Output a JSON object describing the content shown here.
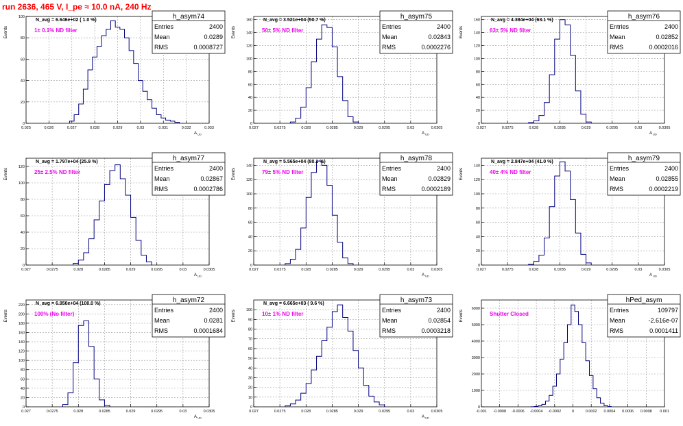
{
  "page_title": "run 2636,   465 V, I_pe ≈ 10.0 nA, 240 Hz",
  "y_axis_label": "Events",
  "stats_labels": {
    "entries": "Entries",
    "mean": "Mean",
    "rms": "RMS"
  },
  "colors": {
    "histogram": "#00007f",
    "annotation": "#ee00ee",
    "title": "#ff0000",
    "grid": "#9a9a9a"
  },
  "chart_data": [
    {
      "type": "histogram",
      "name": "h_asym74",
      "navg": "N_avg = 6.646e+02 ( 1.0 %)",
      "annotation": "1± 0.1% ND filter",
      "stats": {
        "entries": "2400",
        "mean": "0.0289",
        "rms": "0.0008727"
      },
      "xlabel": "A_UD",
      "xlim": [
        0.025,
        0.033
      ],
      "xticks": [
        "0.025",
        "0.026",
        "0.027",
        "0.028",
        "0.029",
        "0.03",
        "0.031",
        "0.032",
        "0.033"
      ],
      "ylim": [
        0,
        100
      ],
      "yticks": [
        "0",
        "20",
        "40",
        "60",
        "80",
        "100"
      ],
      "x": [
        0.027,
        0.0272,
        0.0274,
        0.0276,
        0.0278,
        0.028,
        0.0282,
        0.0284,
        0.0286,
        0.0288,
        0.029,
        0.0292,
        0.0294,
        0.0296,
        0.0298,
        0.03,
        0.0302,
        0.0304,
        0.0306,
        0.0308,
        0.031,
        0.0312,
        0.0314,
        0.0316
      ],
      "y": [
        2,
        8,
        18,
        32,
        50,
        62,
        72,
        82,
        88,
        96,
        90,
        88,
        80,
        68,
        56,
        40,
        30,
        22,
        14,
        8,
        5,
        3,
        2,
        1
      ]
    },
    {
      "type": "histogram",
      "name": "h_asym75",
      "navg": "N_avg = 3.521e+04 (50.7 %)",
      "annotation": "50± 5% ND filter",
      "stats": {
        "entries": "2400",
        "mean": "0.02843",
        "rms": "0.0002276"
      },
      "xlabel": "A_UD",
      "xlim": [
        0.027,
        0.0305
      ],
      "xticks": [
        "0.027",
        "0.0275",
        "0.028",
        "0.0285",
        "0.029",
        "0.0295",
        "0.03",
        "0.0305"
      ],
      "ylim": [
        0,
        165
      ],
      "yticks": [
        "0",
        "20",
        "40",
        "60",
        "80",
        "100",
        "120",
        "140",
        "160"
      ],
      "x": [
        0.02775,
        0.02785,
        0.02795,
        0.02805,
        0.02815,
        0.02825,
        0.02835,
        0.02845,
        0.02855,
        0.02865,
        0.02875,
        0.02885,
        0.02895
      ],
      "y": [
        2,
        8,
        25,
        55,
        95,
        130,
        152,
        148,
        118,
        72,
        35,
        10,
        2
      ]
    },
    {
      "type": "histogram",
      "name": "h_asym76",
      "navg": "N_avg = 4.384e+04 (63.1 %)",
      "annotation": "63± 5% ND filter",
      "stats": {
        "entries": "2400",
        "mean": "0.02852",
        "rms": "0.0002016"
      },
      "xlabel": "A_UD",
      "xlim": [
        0.027,
        0.0305
      ],
      "xticks": [
        "0.027",
        "0.0275",
        "0.028",
        "0.0285",
        "0.029",
        "0.0295",
        "0.03",
        "0.0305"
      ],
      "ylim": [
        0,
        165
      ],
      "yticks": [
        "0",
        "20",
        "40",
        "60",
        "80",
        "100",
        "120",
        "140",
        "160"
      ],
      "x": [
        0.02795,
        0.02805,
        0.02815,
        0.02825,
        0.02835,
        0.02845,
        0.02855,
        0.02865,
        0.02875,
        0.02885,
        0.02895,
        0.02905
      ],
      "y": [
        1,
        4,
        12,
        32,
        75,
        130,
        160,
        152,
        105,
        50,
        14,
        2
      ]
    },
    {
      "type": "histogram",
      "name": "h_asym77",
      "navg": "N_avg = 1.797e+04 (25.9 %)",
      "annotation": "25± 2.5% ND filter",
      "stats": {
        "entries": "2400",
        "mean": "0.02867",
        "rms": "0.0002786"
      },
      "xlabel": "A_UD",
      "xlim": [
        0.027,
        0.0305
      ],
      "xticks": [
        "0.027",
        "0.0275",
        "0.028",
        "0.0285",
        "0.029",
        "0.0295",
        "0.03",
        "0.0305"
      ],
      "ylim": [
        0,
        130
      ],
      "yticks": [
        "0",
        "20",
        "40",
        "60",
        "80",
        "100",
        "120"
      ],
      "x": [
        0.02795,
        0.02805,
        0.02815,
        0.02825,
        0.02835,
        0.02845,
        0.02855,
        0.02865,
        0.02875,
        0.02885,
        0.02895,
        0.02905,
        0.02915,
        0.02925,
        0.02935
      ],
      "y": [
        2,
        6,
        15,
        32,
        55,
        78,
        98,
        115,
        122,
        105,
        85,
        58,
        30,
        12,
        4
      ]
    },
    {
      "type": "histogram",
      "name": "h_asym78",
      "navg": "N_avg = 5.565e+04 (80.1 %)",
      "annotation": "79± 5% ND filter",
      "stats": {
        "entries": "2400",
        "mean": "0.02829",
        "rms": "0.0002189"
      },
      "xlabel": "A_UD",
      "xlim": [
        0.027,
        0.0305
      ],
      "xticks": [
        "0.027",
        "0.0275",
        "0.028",
        "0.0285",
        "0.029",
        "0.0295",
        "0.03",
        "0.0305"
      ],
      "ylim": [
        0,
        150
      ],
      "yticks": [
        "0",
        "20",
        "40",
        "60",
        "80",
        "100",
        "120",
        "140"
      ],
      "x": [
        0.02765,
        0.02775,
        0.02785,
        0.02795,
        0.02805,
        0.02815,
        0.02825,
        0.02835,
        0.02845,
        0.02855,
        0.02865,
        0.02875,
        0.02885
      ],
      "y": [
        2,
        8,
        22,
        52,
        95,
        130,
        146,
        140,
        112,
        70,
        32,
        10,
        2
      ]
    },
    {
      "type": "histogram",
      "name": "h_asym79",
      "navg": "N_avg = 2.847e+04 (41.0 %)",
      "annotation": "40± 4% ND filter",
      "stats": {
        "entries": "2400",
        "mean": "0.02855",
        "rms": "0.0002219"
      },
      "xlabel": "A_UD",
      "xlim": [
        0.027,
        0.0305
      ],
      "xticks": [
        "0.027",
        "0.0275",
        "0.028",
        "0.0285",
        "0.029",
        "0.0295",
        "0.03",
        "0.0305"
      ],
      "ylim": [
        0,
        150
      ],
      "yticks": [
        "0",
        "20",
        "40",
        "60",
        "80",
        "100",
        "120",
        "140"
      ],
      "x": [
        0.02795,
        0.02805,
        0.02815,
        0.02825,
        0.02835,
        0.02845,
        0.02855,
        0.02865,
        0.02875,
        0.02885,
        0.02895,
        0.02905
      ],
      "y": [
        1,
        5,
        14,
        38,
        82,
        125,
        145,
        132,
        92,
        45,
        15,
        3
      ]
    },
    {
      "type": "histogram",
      "name": "h_asym72",
      "navg": "N_avg = 6.950e+04 (100.0 %)",
      "annotation": "100% (No filter)",
      "stats": {
        "entries": "2400",
        "mean": "0.0281",
        "rms": "0.0001684"
      },
      "xlabel": "A_UD",
      "xlim": [
        0.027,
        0.0305
      ],
      "xticks": [
        "0.027",
        "0.0275",
        "0.028",
        "0.0285",
        "0.029",
        "0.0295",
        "0.03",
        "0.0305"
      ],
      "ylim": [
        0,
        230
      ],
      "yticks": [
        "0",
        "20",
        "40",
        "60",
        "80",
        "100",
        "120",
        "140",
        "160",
        "180",
        "200",
        "220"
      ],
      "x": [
        0.02775,
        0.02785,
        0.02795,
        0.02805,
        0.02815,
        0.02825,
        0.02835,
        0.02845,
        0.02855
      ],
      "y": [
        5,
        30,
        95,
        175,
        185,
        130,
        60,
        15,
        3
      ]
    },
    {
      "type": "histogram",
      "name": "h_asym73",
      "navg": "N_avg = 6.665e+03 ( 9.6 %)",
      "annotation": "10± 1% ND filter",
      "stats": {
        "entries": "2400",
        "mean": "0.02854",
        "rms": "0.0003218"
      },
      "xlabel": "A_UD",
      "xlim": [
        0.027,
        0.0305
      ],
      "xticks": [
        "0.027",
        "0.0275",
        "0.028",
        "0.0285",
        "0.029",
        "0.0295",
        "0.03",
        "0.0305"
      ],
      "ylim": [
        0,
        110
      ],
      "yticks": [
        "0",
        "10",
        "20",
        "30",
        "40",
        "50",
        "60",
        "70",
        "80",
        "90",
        "100"
      ],
      "x": [
        0.02765,
        0.02775,
        0.02785,
        0.02795,
        0.02805,
        0.02815,
        0.02825,
        0.02835,
        0.02845,
        0.02855,
        0.02865,
        0.02875,
        0.02885,
        0.02895,
        0.02905,
        0.02915,
        0.02925,
        0.02935,
        0.02945
      ],
      "y": [
        1,
        3,
        7,
        14,
        24,
        38,
        52,
        68,
        82,
        98,
        105,
        92,
        78,
        58,
        40,
        22,
        11,
        5,
        2
      ]
    },
    {
      "type": "histogram",
      "name": "hPed_asym",
      "navg": "",
      "annotation": "Shutter Closed",
      "stats": {
        "entries": "109797",
        "mean": "-2.616e-07",
        "rms": "0.0001411"
      },
      "xlabel": "",
      "xlim": [
        -0.001,
        0.001
      ],
      "xticks": [
        "-0.001",
        "-0.0008",
        "-0.0006",
        "-0.0004",
        "-0.0002",
        "0",
        "0.0002",
        "0.0004",
        "0.0006",
        "0.0008",
        "0.001"
      ],
      "ylim": [
        0,
        6500
      ],
      "yticks": [
        "0",
        "1000",
        "2000",
        "3000",
        "4000",
        "5000",
        "6000"
      ],
      "x": [
        -0.00044,
        -0.0004,
        -0.00036,
        -0.00032,
        -0.00028,
        -0.00024,
        -0.0002,
        -0.00016,
        -0.00012,
        -8e-05,
        -4e-05,
        0.0,
        4e-05,
        8e-05,
        0.00012,
        0.00016,
        0.0002,
        0.00024,
        0.00028,
        0.00032,
        0.00036,
        0.0004
      ],
      "y": [
        5,
        20,
        60,
        150,
        350,
        700,
        1250,
        2000,
        2900,
        3900,
        5000,
        6200,
        5800,
        5000,
        3900,
        2800,
        1900,
        1100,
        550,
        220,
        70,
        15
      ]
    }
  ]
}
